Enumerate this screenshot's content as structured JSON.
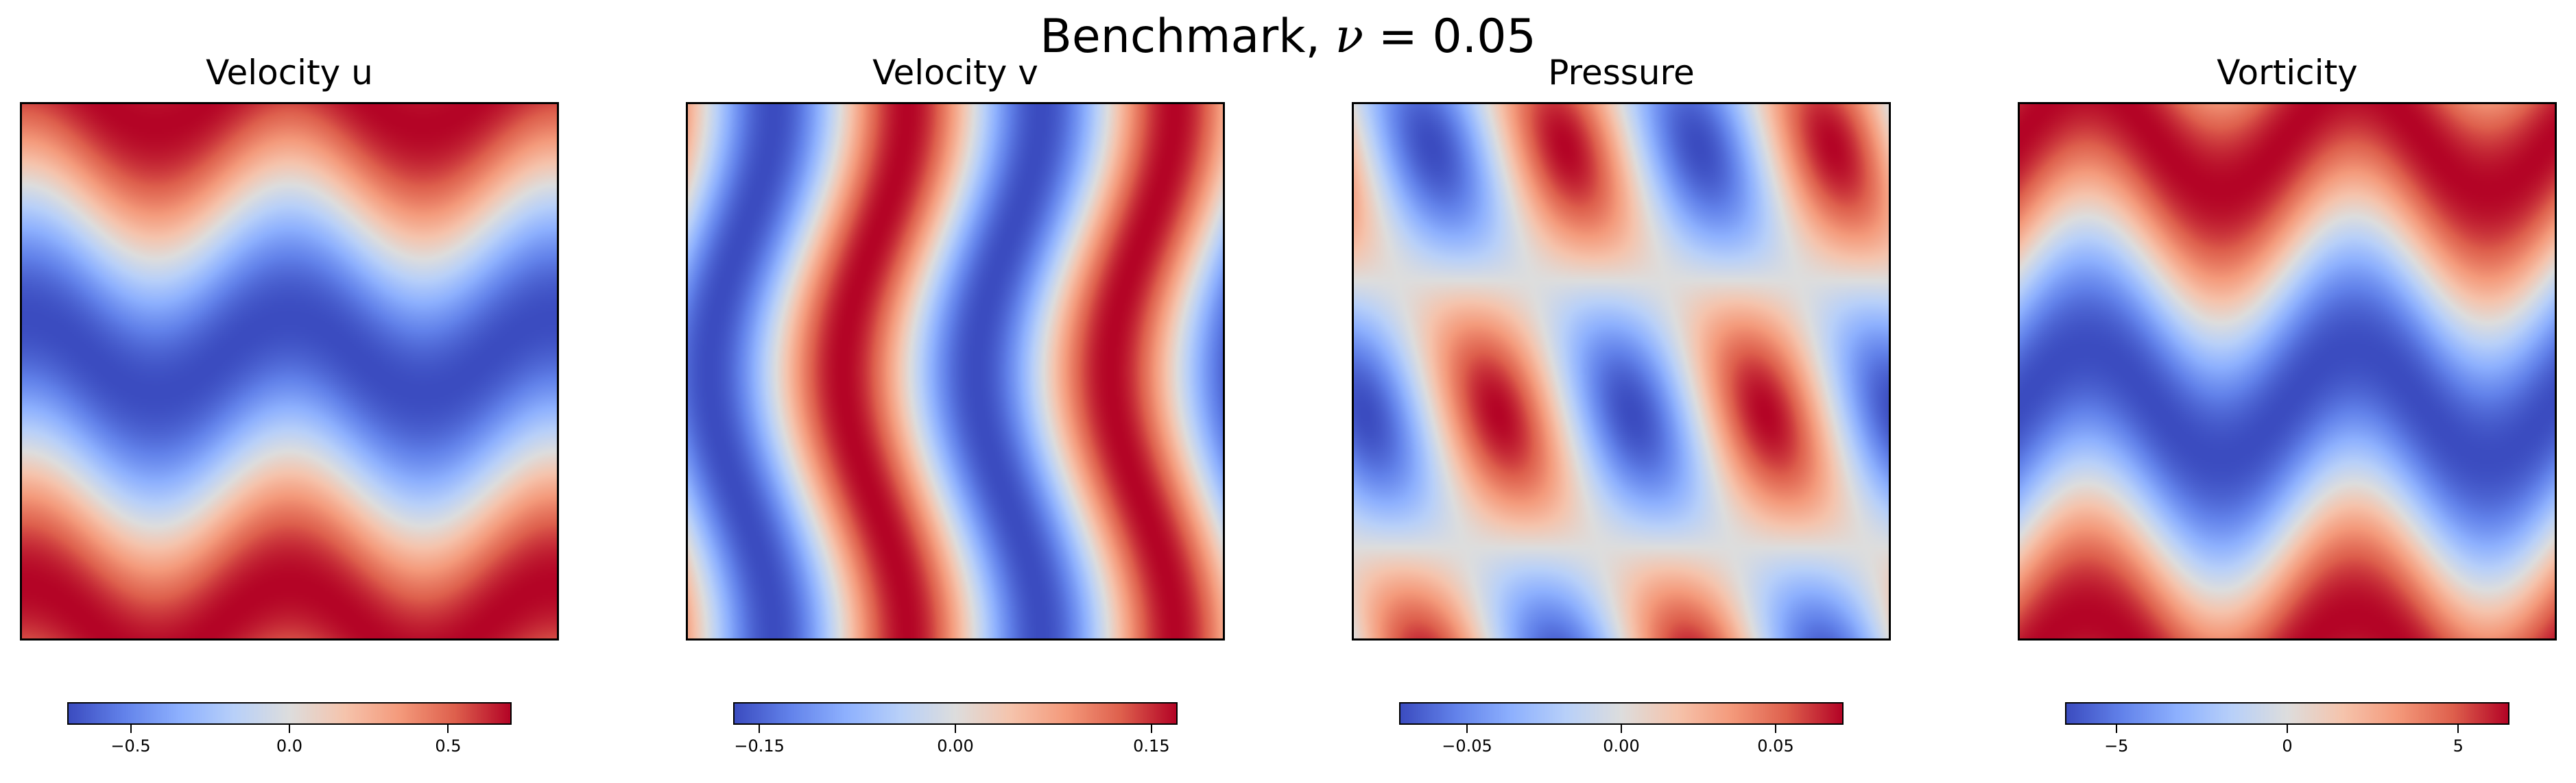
{
  "figure": {
    "suptitle_prefix": "Benchmark, ",
    "suptitle_symbol": "ν",
    "suptitle_suffix": " = 0.05"
  },
  "chart_data": [
    {
      "type": "heatmap",
      "title": "Velocity u",
      "colormap": "coolwarm",
      "field": "u",
      "vmin": -0.7,
      "vmax": 0.7,
      "colorbar_ticks": [
        -0.5,
        0.0,
        0.5
      ],
      "colorbar_tick_labels": [
        "−0.5",
        "0.0",
        "0.5"
      ],
      "axes_visible": false
    },
    {
      "type": "heatmap",
      "title": "Velocity v",
      "colormap": "coolwarm",
      "field": "v",
      "vmin": -0.17,
      "vmax": 0.17,
      "colorbar_ticks": [
        -0.15,
        0.0,
        0.15
      ],
      "colorbar_tick_labels": [
        "−0.15",
        "0.00",
        "0.15"
      ],
      "axes_visible": false
    },
    {
      "type": "heatmap",
      "title": "Pressure",
      "colormap": "coolwarm",
      "field": "p",
      "vmin": -0.072,
      "vmax": 0.072,
      "colorbar_ticks": [
        -0.05,
        0.0,
        0.05
      ],
      "colorbar_tick_labels": [
        "−0.05",
        "0.00",
        "0.05"
      ],
      "axes_visible": false
    },
    {
      "type": "heatmap",
      "title": "Vorticity",
      "colormap": "coolwarm",
      "field": "w",
      "vmin": -6.5,
      "vmax": 6.5,
      "colorbar_ticks": [
        -5,
        0,
        5
      ],
      "colorbar_tick_labels": [
        "−5",
        "0",
        "5"
      ],
      "axes_visible": false
    }
  ],
  "colors": {
    "coolwarm_low": "#3b4cc0",
    "coolwarm_mid": "#dddddd",
    "coolwarm_high": "#b40426"
  }
}
